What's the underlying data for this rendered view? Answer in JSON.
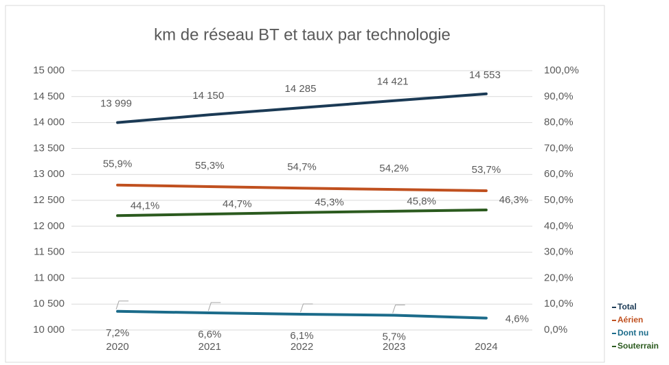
{
  "chart_data": {
    "type": "line",
    "title": "km de réseau BT et taux par technologie",
    "categories": [
      "2020",
      "2021",
      "2022",
      "2023",
      "2024"
    ],
    "ylim": [
      10000,
      15000
    ],
    "yticks": [
      {
        "value": 10000,
        "label": "10 000"
      },
      {
        "value": 10500,
        "label": "10 500"
      },
      {
        "value": 11000,
        "label": "11 000"
      },
      {
        "value": 11500,
        "label": "11 500"
      },
      {
        "value": 12000,
        "label": "12 000"
      },
      {
        "value": 12500,
        "label": "12 500"
      },
      {
        "value": 13000,
        "label": "13 000"
      },
      {
        "value": 13500,
        "label": "13 500"
      },
      {
        "value": 14000,
        "label": "14 000"
      },
      {
        "value": 14500,
        "label": "14 500"
      },
      {
        "value": 15000,
        "label": "15 000"
      }
    ],
    "y2lim": [
      0,
      100
    ],
    "y2ticks": [
      {
        "value": 0,
        "label": "0,0%"
      },
      {
        "value": 10,
        "label": "10,0%"
      },
      {
        "value": 20,
        "label": "20,0%"
      },
      {
        "value": 30,
        "label": "30,0%"
      },
      {
        "value": 40,
        "label": "40,0%"
      },
      {
        "value": 50,
        "label": "50,0%"
      },
      {
        "value": 60,
        "label": "60,0%"
      },
      {
        "value": 70,
        "label": "70,0%"
      },
      {
        "value": 80,
        "label": "80,0%"
      },
      {
        "value": 90,
        "label": "90,0%"
      },
      {
        "value": 100,
        "label": "100,0%"
      }
    ],
    "grid": true,
    "legend": "right",
    "series": [
      {
        "name": "Total",
        "color": "#1b3a55",
        "values": [
          13999,
          14150,
          14285,
          14421,
          14553
        ],
        "value_labels": [
          "13 999",
          "14 150",
          "14 285",
          "14 421",
          "14 553"
        ]
      },
      {
        "name": "Aérien",
        "color": "#c0501f",
        "axis": "y2",
        "values": [
          55.9,
          55.3,
          54.7,
          54.2,
          53.7
        ],
        "value_labels": [
          "55,9%",
          "55,3%",
          "54,7%",
          "54,2%",
          "53,7%"
        ]
      },
      {
        "name": "Dont nu",
        "color": "#1b6b8a",
        "axis": "y2",
        "values": [
          7.2,
          6.6,
          6.1,
          5.7,
          4.6
        ],
        "value_labels": [
          "7,2%",
          "6,6%",
          "6,1%",
          "5,7%",
          "4,6%"
        ]
      },
      {
        "name": "Souterrain",
        "color": "#2b5a1e",
        "axis": "y2",
        "values": [
          44.1,
          44.7,
          45.3,
          45.8,
          46.3
        ],
        "value_labels": [
          "44,1%",
          "44,7%",
          "45,3%",
          "45,8%",
          "46,3%"
        ]
      }
    ]
  }
}
